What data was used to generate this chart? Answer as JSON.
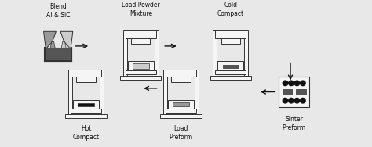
{
  "bg_color": "#e8e8e8",
  "outline_color": "#333333",
  "light_gray": "#cccccc",
  "mid_gray": "#999999",
  "dark_gray": "#555555",
  "black": "#111111",
  "white": "#f5f5f5",
  "labels": {
    "blend": "Blend\nAl & SiC",
    "load_powder": "Load Powder\nMixture",
    "cold_compact": "Cold\nCompact",
    "sinter_preform": "Sinter\nPreform",
    "load_preform": "Load\nPreform",
    "hot_compact": "Hot\nCompact"
  },
  "figsize": [
    4.74,
    1.88
  ],
  "dpi": 100
}
